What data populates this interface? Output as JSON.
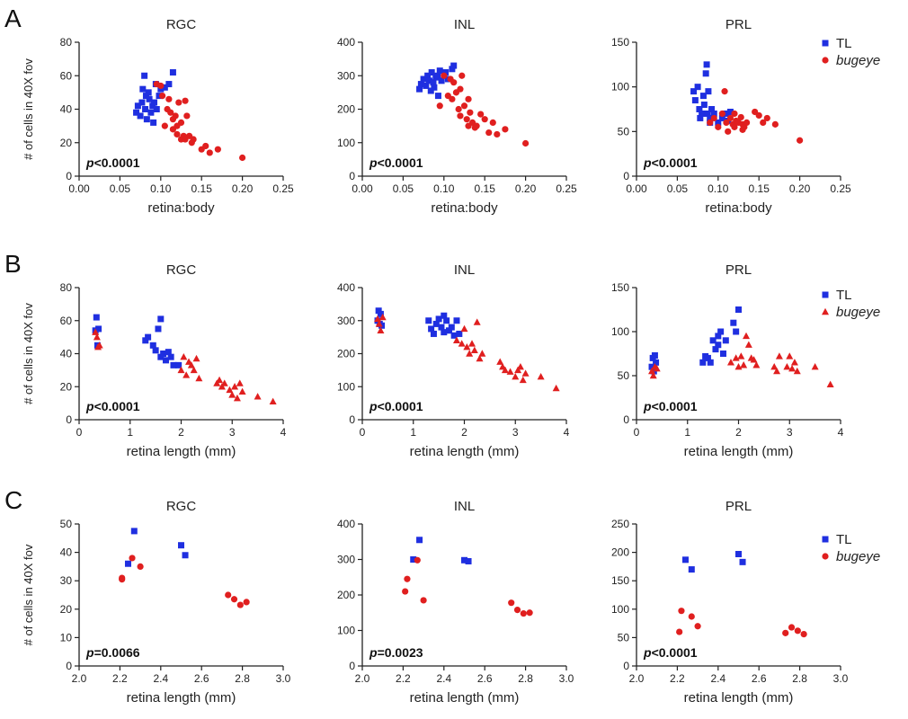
{
  "panel_letters": [
    "A",
    "B",
    "C"
  ],
  "y_axis_label": "# of cells in 40X fov",
  "colors": {
    "TL": "#1f2fe0",
    "bugeye": "#e01f1f",
    "axis": "#222222"
  },
  "chart_data": [
    {
      "panel": "A",
      "title": "RGC",
      "type": "scatter",
      "xlabel": "retina:body",
      "ylabel": "# of cells in 40X fov",
      "xlim": [
        0.0,
        0.25
      ],
      "ylim": [
        0,
        80
      ],
      "xticks": [
        "0.00",
        "0.05",
        "0.10",
        "0.15",
        "0.20",
        "0.25"
      ],
      "yticks": [
        "0",
        "20",
        "40",
        "60",
        "80"
      ],
      "pvalue": {
        "p": "p",
        "rest": "<0.0001"
      },
      "series": [
        {
          "marker": "square",
          "color": "#1f2fe0",
          "x": [
            0.07,
            0.072,
            0.075,
            0.077,
            0.078,
            0.08,
            0.081,
            0.082,
            0.083,
            0.085,
            0.086,
            0.088,
            0.09,
            0.091,
            0.092,
            0.094,
            0.095,
            0.098,
            0.1,
            0.105,
            0.11,
            0.115
          ],
          "y": [
            38,
            42,
            36,
            44,
            52,
            60,
            40,
            48,
            34,
            50,
            46,
            38,
            42,
            32,
            44,
            55,
            40,
            48,
            52,
            53,
            55,
            62
          ]
        },
        {
          "marker": "circle",
          "color": "#e01f1f",
          "x": [
            0.095,
            0.1,
            0.102,
            0.105,
            0.108,
            0.11,
            0.112,
            0.115,
            0.115,
            0.118,
            0.12,
            0.12,
            0.122,
            0.125,
            0.125,
            0.128,
            0.13,
            0.13,
            0.132,
            0.135,
            0.138,
            0.14,
            0.15,
            0.155,
            0.16,
            0.17,
            0.2
          ],
          "y": [
            55,
            54,
            48,
            30,
            40,
            46,
            38,
            34,
            28,
            36,
            30,
            25,
            44,
            22,
            32,
            24,
            45,
            22,
            36,
            24,
            20,
            22,
            16,
            18,
            14,
            16,
            11
          ]
        }
      ]
    },
    {
      "panel": "A",
      "title": "INL",
      "type": "scatter",
      "xlabel": "retina:body",
      "ylabel": "",
      "xlim": [
        0.0,
        0.25
      ],
      "ylim": [
        0,
        400
      ],
      "xticks": [
        "0.00",
        "0.05",
        "0.10",
        "0.15",
        "0.20",
        "0.25"
      ],
      "yticks": [
        "0",
        "100",
        "200",
        "300",
        "400"
      ],
      "pvalue": {
        "p": "p",
        "rest": "<0.0001"
      },
      "series": [
        {
          "marker": "square",
          "color": "#1f2fe0",
          "x": [
            0.07,
            0.072,
            0.075,
            0.078,
            0.08,
            0.082,
            0.084,
            0.085,
            0.087,
            0.088,
            0.09,
            0.092,
            0.093,
            0.095,
            0.097,
            0.1,
            0.102,
            0.105,
            0.11,
            0.112
          ],
          "y": [
            260,
            275,
            290,
            270,
            300,
            285,
            255,
            310,
            280,
            265,
            295,
            300,
            240,
            315,
            285,
            300,
            310,
            290,
            320,
            330
          ]
        },
        {
          "marker": "circle",
          "color": "#e01f1f",
          "x": [
            0.095,
            0.1,
            0.105,
            0.108,
            0.11,
            0.112,
            0.115,
            0.118,
            0.12,
            0.12,
            0.122,
            0.125,
            0.128,
            0.13,
            0.13,
            0.132,
            0.135,
            0.138,
            0.14,
            0.145,
            0.15,
            0.155,
            0.16,
            0.165,
            0.175,
            0.2
          ],
          "y": [
            210,
            300,
            240,
            290,
            230,
            280,
            250,
            200,
            260,
            180,
            300,
            210,
            170,
            150,
            230,
            190,
            160,
            145,
            150,
            185,
            170,
            130,
            160,
            125,
            140,
            98
          ]
        }
      ]
    },
    {
      "panel": "A",
      "title": "PRL",
      "type": "scatter",
      "xlabel": "retina:body",
      "ylabel": "",
      "xlim": [
        0.0,
        0.25
      ],
      "ylim": [
        0,
        150
      ],
      "xticks": [
        "0.00",
        "0.05",
        "0.10",
        "0.15",
        "0.20",
        "0.25"
      ],
      "yticks": [
        "0",
        "50",
        "100",
        "150"
      ],
      "pvalue": {
        "p": "p",
        "rest": "<0.0001"
      },
      "series": [
        {
          "marker": "square",
          "color": "#1f2fe0",
          "x": [
            0.07,
            0.072,
            0.075,
            0.077,
            0.078,
            0.08,
            0.082,
            0.083,
            0.085,
            0.086,
            0.087,
            0.088,
            0.09,
            0.09,
            0.092,
            0.095,
            0.1,
            0.105,
            0.11,
            0.112,
            0.115
          ],
          "y": [
            95,
            85,
            100,
            75,
            65,
            70,
            90,
            80,
            115,
            125,
            70,
            95,
            65,
            60,
            75,
            70,
            60,
            65,
            70,
            62,
            72
          ]
        },
        {
          "marker": "circle",
          "color": "#e01f1f",
          "x": [
            0.09,
            0.095,
            0.1,
            0.105,
            0.108,
            0.11,
            0.112,
            0.115,
            0.118,
            0.12,
            0.12,
            0.122,
            0.125,
            0.128,
            0.13,
            0.13,
            0.132,
            0.135,
            0.145,
            0.15,
            0.155,
            0.16,
            0.17,
            0.2
          ],
          "y": [
            60,
            65,
            55,
            70,
            95,
            60,
            50,
            65,
            58,
            70,
            55,
            62,
            60,
            66,
            52,
            58,
            55,
            60,
            72,
            68,
            60,
            65,
            58,
            40
          ]
        }
      ]
    },
    {
      "panel": "B",
      "title": "RGC",
      "type": "scatter",
      "xlabel": "retina length (mm)",
      "ylabel": "# of cells in 40X fov",
      "xlim": [
        0,
        4
      ],
      "ylim": [
        0,
        80
      ],
      "xticks": [
        "0",
        "1",
        "2",
        "3",
        "4"
      ],
      "yticks": [
        "0",
        "20",
        "40",
        "60",
        "80"
      ],
      "pvalue": {
        "p": "p",
        "rest": "<0.0001"
      },
      "series": [
        {
          "marker": "square",
          "color": "#1f2fe0",
          "x": [
            0.32,
            0.34,
            0.36,
            0.38,
            1.3,
            1.35,
            1.45,
            1.5,
            1.55,
            1.6,
            1.6,
            1.65,
            1.7,
            1.75,
            1.8,
            1.85,
            1.95
          ],
          "y": [
            54,
            62,
            45,
            55,
            48,
            50,
            45,
            42,
            55,
            38,
            61,
            40,
            36,
            41,
            38,
            33,
            33
          ]
        },
        {
          "marker": "triangle",
          "color": "#e01f1f",
          "x": [
            0.32,
            0.35,
            0.37,
            0.4,
            2.0,
            2.05,
            2.1,
            2.15,
            2.2,
            2.25,
            2.3,
            2.35,
            2.7,
            2.75,
            2.8,
            2.85,
            2.95,
            3.0,
            3.05,
            3.1,
            3.15,
            3.2,
            3.5,
            3.8
          ],
          "y": [
            53,
            50,
            44,
            45,
            30,
            38,
            27,
            35,
            33,
            30,
            37,
            25,
            22,
            24,
            20,
            22,
            18,
            15,
            20,
            13,
            22,
            17,
            14,
            11
          ]
        }
      ]
    },
    {
      "panel": "B",
      "title": "INL",
      "type": "scatter",
      "xlabel": "retina length (mm)",
      "ylabel": "",
      "xlim": [
        0,
        4
      ],
      "ylim": [
        0,
        400
      ],
      "xticks": [
        "0",
        "1",
        "2",
        "3",
        "4"
      ],
      "yticks": [
        "0",
        "100",
        "200",
        "300",
        "400"
      ],
      "pvalue": {
        "p": "p",
        "rest": "<0.0001"
      },
      "series": [
        {
          "marker": "square",
          "color": "#1f2fe0",
          "x": [
            0.3,
            0.32,
            0.34,
            0.36,
            0.38,
            1.3,
            1.35,
            1.4,
            1.45,
            1.5,
            1.55,
            1.6,
            1.6,
            1.65,
            1.7,
            1.75,
            1.8,
            1.85,
            1.9
          ],
          "y": [
            300,
            330,
            290,
            320,
            285,
            300,
            275,
            260,
            290,
            305,
            280,
            265,
            315,
            300,
            270,
            280,
            255,
            300,
            260
          ]
        },
        {
          "marker": "triangle",
          "color": "#e01f1f",
          "x": [
            0.3,
            0.33,
            0.36,
            0.4,
            1.85,
            1.95,
            2.0,
            2.05,
            2.1,
            2.15,
            2.2,
            2.25,
            2.3,
            2.35,
            2.7,
            2.75,
            2.8,
            2.9,
            3.0,
            3.05,
            3.1,
            3.15,
            3.2,
            3.5,
            3.8
          ],
          "y": [
            305,
            290,
            270,
            310,
            240,
            230,
            275,
            220,
            200,
            230,
            210,
            295,
            185,
            200,
            175,
            160,
            150,
            145,
            130,
            150,
            160,
            120,
            140,
            130,
            95
          ]
        }
      ]
    },
    {
      "panel": "B",
      "title": "PRL",
      "type": "scatter",
      "xlabel": "retina length (mm)",
      "ylabel": "",
      "xlim": [
        0,
        4
      ],
      "ylim": [
        0,
        150
      ],
      "xticks": [
        "0",
        "1",
        "2",
        "3",
        "4"
      ],
      "yticks": [
        "0",
        "50",
        "100",
        "150"
      ],
      "pvalue": {
        "p": "p",
        "rest": "<0.0001"
      },
      "series": [
        {
          "marker": "square",
          "color": "#1f2fe0",
          "x": [
            0.3,
            0.32,
            0.34,
            0.36,
            0.38,
            1.3,
            1.35,
            1.4,
            1.45,
            1.5,
            1.55,
            1.6,
            1.6,
            1.65,
            1.7,
            1.75,
            1.9,
            1.95,
            2.0
          ],
          "y": [
            60,
            70,
            55,
            73,
            65,
            65,
            72,
            70,
            65,
            90,
            80,
            95,
            85,
            100,
            75,
            90,
            110,
            100,
            125
          ]
        },
        {
          "marker": "triangle",
          "color": "#e01f1f",
          "x": [
            0.3,
            0.33,
            0.36,
            0.4,
            1.85,
            1.95,
            2.0,
            2.05,
            2.1,
            2.15,
            2.2,
            2.25,
            2.3,
            2.35,
            2.7,
            2.75,
            2.8,
            2.95,
            3.0,
            3.05,
            3.1,
            3.15,
            3.5,
            3.8
          ],
          "y": [
            55,
            50,
            60,
            58,
            65,
            70,
            60,
            72,
            62,
            95,
            85,
            70,
            68,
            62,
            60,
            55,
            72,
            60,
            72,
            58,
            65,
            55,
            60,
            40
          ]
        }
      ]
    },
    {
      "panel": "C",
      "title": "RGC",
      "type": "scatter",
      "xlabel": "retina length (mm)",
      "ylabel": "# of cells in 40X fov",
      "xlim": [
        2.0,
        3.0
      ],
      "ylim": [
        0,
        50
      ],
      "xticks": [
        "2.0",
        "2.2",
        "2.4",
        "2.6",
        "2.8",
        "3.0"
      ],
      "yticks": [
        "0",
        "10",
        "20",
        "30",
        "40",
        "50"
      ],
      "pvalue": {
        "p": "p",
        "rest": "=0.0066"
      },
      "series": [
        {
          "marker": "square",
          "color": "#1f2fe0",
          "x": [
            2.24,
            2.27,
            2.5,
            2.52
          ],
          "y": [
            36,
            47.5,
            42.5,
            39
          ]
        },
        {
          "marker": "circle",
          "color": "#e01f1f",
          "x": [
            2.21,
            2.21,
            2.26,
            2.3,
            2.73,
            2.76,
            2.79,
            2.82
          ],
          "y": [
            30.5,
            31,
            38,
            35,
            25,
            23.5,
            21.5,
            22.5
          ]
        }
      ]
    },
    {
      "panel": "C",
      "title": "INL",
      "type": "scatter",
      "xlabel": "retina length (mm)",
      "ylabel": "",
      "xlim": [
        2.0,
        3.0
      ],
      "ylim": [
        0,
        400
      ],
      "xticks": [
        "2.0",
        "2.2",
        "2.4",
        "2.6",
        "2.8",
        "3.0"
      ],
      "yticks": [
        "0",
        "100",
        "200",
        "300",
        "400"
      ],
      "pvalue": {
        "p": "p",
        "rest": "=0.0023"
      },
      "series": [
        {
          "marker": "square",
          "color": "#1f2fe0",
          "x": [
            2.25,
            2.28,
            2.5,
            2.52
          ],
          "y": [
            300,
            355,
            298,
            295
          ]
        },
        {
          "marker": "circle",
          "color": "#e01f1f",
          "x": [
            2.21,
            2.22,
            2.27,
            2.3,
            2.73,
            2.76,
            2.79,
            2.82
          ],
          "y": [
            210,
            245,
            298,
            185,
            178,
            158,
            148,
            150
          ]
        }
      ]
    },
    {
      "panel": "C",
      "title": "PRL",
      "type": "scatter",
      "xlabel": "retina length (mm)",
      "ylabel": "",
      "xlim": [
        2.0,
        3.0
      ],
      "ylim": [
        0,
        250
      ],
      "xticks": [
        "2.0",
        "2.2",
        "2.4",
        "2.6",
        "2.8",
        "3.0"
      ],
      "yticks": [
        "0",
        "50",
        "100",
        "150",
        "200",
        "250"
      ],
      "pvalue": {
        "p": "p",
        "rest": "<0.0001"
      },
      "series": [
        {
          "marker": "square",
          "color": "#1f2fe0",
          "x": [
            2.24,
            2.27,
            2.5,
            2.52
          ],
          "y": [
            187,
            170,
            197,
            183
          ]
        },
        {
          "marker": "circle",
          "color": "#e01f1f",
          "x": [
            2.21,
            2.22,
            2.27,
            2.3,
            2.73,
            2.76,
            2.79,
            2.82
          ],
          "y": [
            60,
            97,
            87,
            70,
            58,
            68,
            62,
            56
          ]
        }
      ]
    }
  ],
  "legends": [
    {
      "panel": "A",
      "entries": [
        {
          "label": "TL",
          "marker": "square",
          "color": "#1f2fe0",
          "italic": false
        },
        {
          "label": "bugeye",
          "marker": "circle",
          "color": "#e01f1f",
          "italic": true
        }
      ]
    },
    {
      "panel": "B",
      "entries": [
        {
          "label": "TL",
          "marker": "square",
          "color": "#1f2fe0",
          "italic": false
        },
        {
          "label": "bugeye",
          "marker": "triangle",
          "color": "#e01f1f",
          "italic": true
        }
      ]
    },
    {
      "panel": "C",
      "entries": [
        {
          "label": "TL",
          "marker": "square",
          "color": "#1f2fe0",
          "italic": false
        },
        {
          "label": "bugeye",
          "marker": "circle",
          "color": "#e01f1f",
          "italic": true
        }
      ]
    }
  ]
}
